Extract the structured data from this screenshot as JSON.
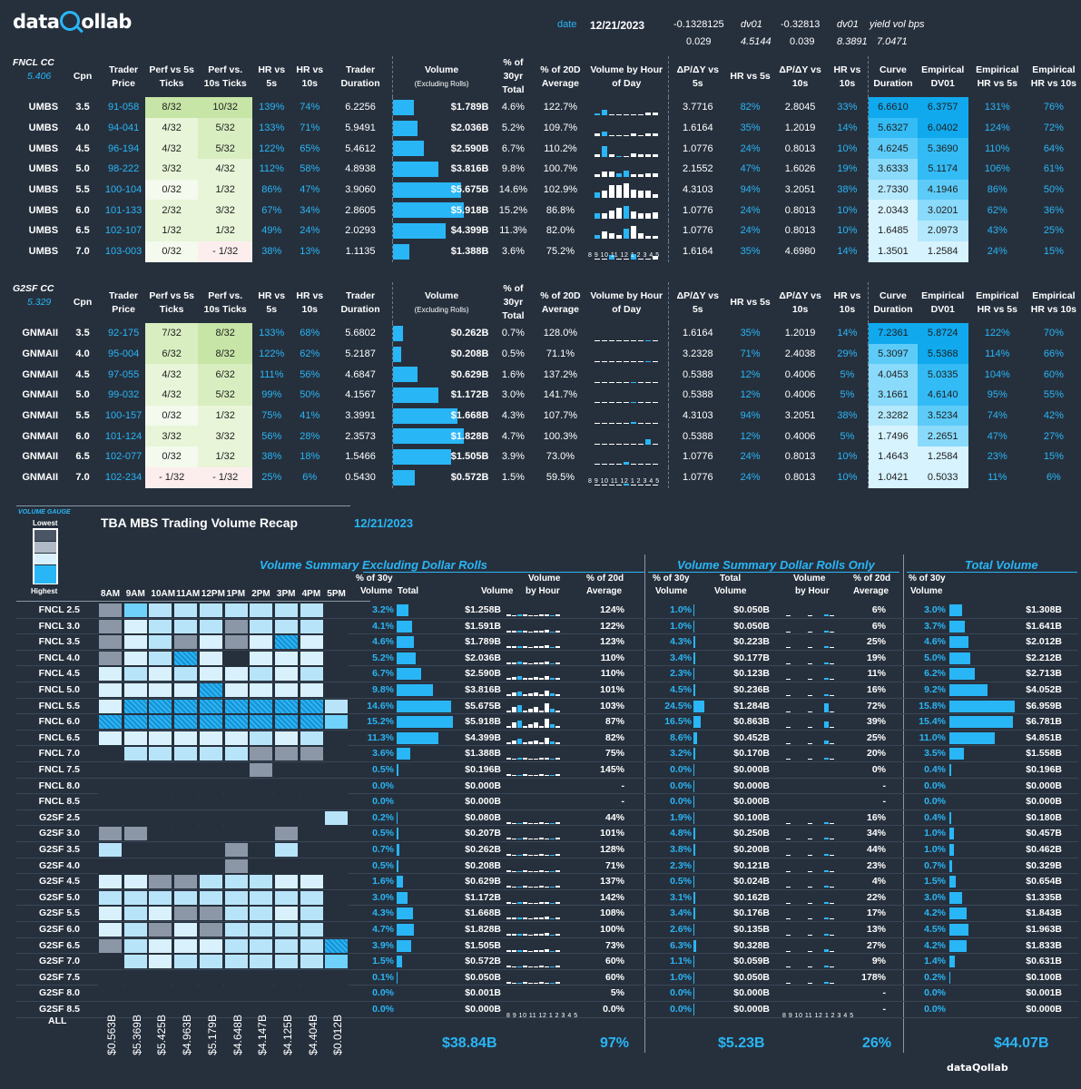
{
  "header": {
    "logo": "dataQollab",
    "date_label": "date",
    "date": "12/21/2023",
    "v1": "-0.1328125",
    "dv01a": "dv01",
    "v2": "-0.32813",
    "dv01b": "dv01",
    "yvb": "yield vol bps",
    "r2a": "0.029",
    "r2b": "4.5144",
    "r2c": "0.039",
    "r2d": "8.3891",
    "r2e": "7.0471"
  },
  "cols": [
    "Trader Price",
    "Perf vs 5s Ticks",
    "Perf vs. 10s Ticks",
    "HR vs 5s",
    "HR vs 10s",
    "Trader Duration",
    "Volume",
    "(Excluding Rolls)",
    "% of 30yr Total",
    "% of 20D Average",
    "Volume by Hour of Day",
    "ΔP/ΔY vs 5s",
    "HR vs 5s",
    "ΔP/ΔY vs 10s",
    "HR vs 10s",
    "Curve Duration",
    "Empirical DV01",
    "Empirical HR vs 5s",
    "Empirical HR vs 10s",
    "Cpn"
  ],
  "fncl": {
    "title": "FNCL CC",
    "value": "5.406",
    "rows": [
      [
        "UMBS",
        "3.5",
        "91-058",
        "8/32",
        "10/32",
        "139%",
        "74%",
        "6.2256",
        "$1.789B",
        "4.6%",
        "122.7%",
        "3.7716",
        "82%",
        "2.8045",
        "33%",
        "6.6610",
        "6.3757",
        "131%",
        "76%"
      ],
      [
        "UMBS",
        "4.0",
        "94-041",
        "4/32",
        "5/32",
        "133%",
        "71%",
        "5.9491",
        "$2.036B",
        "5.2%",
        "109.7%",
        "1.6164",
        "35%",
        "1.2019",
        "14%",
        "5.6327",
        "6.0402",
        "124%",
        "72%"
      ],
      [
        "UMBS",
        "4.5",
        "96-194",
        "4/32",
        "5/32",
        "122%",
        "65%",
        "5.4612",
        "$2.590B",
        "6.7%",
        "110.2%",
        "1.0776",
        "24%",
        "0.8013",
        "10%",
        "4.6245",
        "5.3690",
        "110%",
        "64%"
      ],
      [
        "UMBS",
        "5.0",
        "98-222",
        "3/32",
        "4/32",
        "112%",
        "58%",
        "4.8938",
        "$3.816B",
        "9.8%",
        "100.7%",
        "2.1552",
        "47%",
        "1.6026",
        "19%",
        "3.6333",
        "5.1174",
        "106%",
        "61%"
      ],
      [
        "UMBS",
        "5.5",
        "100-104",
        "0/32",
        "1/32",
        "86%",
        "47%",
        "3.9060",
        "$5.675B",
        "14.6%",
        "102.9%",
        "4.3103",
        "94%",
        "3.2051",
        "38%",
        "2.7330",
        "4.1946",
        "86%",
        "50%"
      ],
      [
        "UMBS",
        "6.0",
        "101-133",
        "2/32",
        "3/32",
        "67%",
        "34%",
        "2.8605",
        "$5.918B",
        "15.2%",
        "86.8%",
        "1.0776",
        "24%",
        "0.8013",
        "10%",
        "2.0343",
        "3.0201",
        "62%",
        "36%"
      ],
      [
        "UMBS",
        "6.5",
        "102-107",
        "1/32",
        "1/32",
        "49%",
        "24%",
        "2.0293",
        "$4.399B",
        "11.3%",
        "82.0%",
        "1.0776",
        "24%",
        "0.8013",
        "10%",
        "1.6485",
        "2.0973",
        "43%",
        "25%"
      ],
      [
        "UMBS",
        "7.0",
        "103-003",
        "0/32",
        "- 1/32",
        "38%",
        "13%",
        "1.1135",
        "$1.388B",
        "3.6%",
        "75.2%",
        "1.6164",
        "35%",
        "4.6980",
        "14%",
        "1.3501",
        "1.2584",
        "24%",
        "15%"
      ]
    ]
  },
  "g2sf": {
    "title": "G2SF CC",
    "value": "5.329",
    "rows": [
      [
        "GNMAII",
        "3.5",
        "92-175",
        "7/32",
        "8/32",
        "133%",
        "68%",
        "5.6802",
        "$0.262B",
        "0.7%",
        "128.0%",
        "1.6164",
        "35%",
        "1.2019",
        "14%",
        "7.2361",
        "5.8724",
        "122%",
        "70%"
      ],
      [
        "GNMAII",
        "4.0",
        "95-004",
        "6/32",
        "8/32",
        "122%",
        "62%",
        "5.2187",
        "$0.208B",
        "0.5%",
        "71.1%",
        "3.2328",
        "71%",
        "2.4038",
        "29%",
        "5.3097",
        "5.5368",
        "114%",
        "66%"
      ],
      [
        "GNMAII",
        "4.5",
        "97-055",
        "4/32",
        "6/32",
        "111%",
        "56%",
        "4.6847",
        "$0.629B",
        "1.6%",
        "137.2%",
        "0.5388",
        "12%",
        "0.4006",
        "5%",
        "4.0453",
        "5.0335",
        "104%",
        "60%"
      ],
      [
        "GNMAII",
        "5.0",
        "99-032",
        "4/32",
        "5/32",
        "99%",
        "50%",
        "4.1567",
        "$1.172B",
        "3.0%",
        "141.7%",
        "0.5388",
        "12%",
        "0.4006",
        "5%",
        "3.1661",
        "4.6140",
        "95%",
        "55%"
      ],
      [
        "GNMAII",
        "5.5",
        "100-157",
        "0/32",
        "1/32",
        "75%",
        "41%",
        "3.3991",
        "$1.668B",
        "4.3%",
        "107.7%",
        "4.3103",
        "94%",
        "3.2051",
        "38%",
        "2.3282",
        "3.5234",
        "74%",
        "42%"
      ],
      [
        "GNMAII",
        "6.0",
        "101-124",
        "3/32",
        "3/32",
        "56%",
        "28%",
        "2.3573",
        "$1.828B",
        "4.7%",
        "100.3%",
        "0.5388",
        "12%",
        "0.4006",
        "5%",
        "1.7496",
        "2.2651",
        "47%",
        "27%"
      ],
      [
        "GNMAII",
        "6.5",
        "102-077",
        "0/32",
        "1/32",
        "38%",
        "18%",
        "1.5466",
        "$1.505B",
        "3.9%",
        "73.0%",
        "1.0776",
        "24%",
        "0.8013",
        "10%",
        "1.4643",
        "1.2584",
        "23%",
        "15%"
      ],
      [
        "GNMAII",
        "7.0",
        "102-234",
        "- 1/32",
        "- 1/32",
        "25%",
        "6%",
        "0.5430",
        "$0.572B",
        "1.5%",
        "59.5%",
        "1.0776",
        "24%",
        "0.8013",
        "10%",
        "1.0421",
        "0.5033",
        "11%",
        "6%"
      ]
    ]
  },
  "axis": "8 9 10 11 12 1 2 3 4 5",
  "gauge": {
    "title": "VOLUME GAUGE",
    "lowest": "Lowest",
    "highest": "Highest"
  },
  "recap": {
    "title": "TBA MBS Trading Volume Recap",
    "date": "12/21/2023",
    "s1": "Volume Summary Excluding Dollar Rolls",
    "s2": "Volume Summary Dollar Rolls Only",
    "s3": "Total Volume",
    "h_pct30": "% of 30y",
    "h_vol": "Volume",
    "h_total": "Total",
    "h_volume": "Volume",
    "h_byhour": "Volume by Hour",
    "h_pct20": "% of 20d",
    "h_avg": "Average",
    "hours": [
      "8AM",
      "9AM",
      "10AM",
      "11AM",
      "12PM",
      "1PM",
      "2PM",
      "3PM",
      "4PM",
      "5PM"
    ],
    "rows": [
      [
        "FNCL 2.5",
        "3.2%",
        "$1.258B",
        "124%",
        "1.0%",
        "$0.050B",
        "6%",
        "3.0%",
        "$1.308B"
      ],
      [
        "FNCL 3.0",
        "4.1%",
        "$1.591B",
        "122%",
        "1.0%",
        "$0.050B",
        "6%",
        "3.7%",
        "$1.641B"
      ],
      [
        "FNCL 3.5",
        "4.6%",
        "$1.789B",
        "123%",
        "4.3%",
        "$0.223B",
        "25%",
        "4.6%",
        "$2.012B"
      ],
      [
        "FNCL 4.0",
        "5.2%",
        "$2.036B",
        "110%",
        "3.4%",
        "$0.177B",
        "19%",
        "5.0%",
        "$2.212B"
      ],
      [
        "FNCL 4.5",
        "6.7%",
        "$2.590B",
        "110%",
        "2.3%",
        "$0.123B",
        "11%",
        "6.2%",
        "$2.713B"
      ],
      [
        "FNCL 5.0",
        "9.8%",
        "$3.816B",
        "101%",
        "4.5%",
        "$0.236B",
        "16%",
        "9.2%",
        "$4.052B"
      ],
      [
        "FNCL 5.5",
        "14.6%",
        "$5.675B",
        "103%",
        "24.5%",
        "$1.284B",
        "72%",
        "15.8%",
        "$6.959B"
      ],
      [
        "FNCL 6.0",
        "15.2%",
        "$5.918B",
        "87%",
        "16.5%",
        "$0.863B",
        "39%",
        "15.4%",
        "$6.781B"
      ],
      [
        "FNCL 6.5",
        "11.3%",
        "$4.399B",
        "82%",
        "8.6%",
        "$0.452B",
        "25%",
        "11.0%",
        "$4.851B"
      ],
      [
        "FNCL 7.0",
        "3.6%",
        "$1.388B",
        "75%",
        "3.2%",
        "$0.170B",
        "20%",
        "3.5%",
        "$1.558B"
      ],
      [
        "FNCL 7.5",
        "0.5%",
        "$0.196B",
        "145%",
        "0.0%",
        "$0.000B",
        "0%",
        "0.4%",
        "$0.196B"
      ],
      [
        "FNCL 8.0",
        "0.0%",
        "$0.000B",
        "-",
        "0.0%",
        "$0.000B",
        "-",
        "0.0%",
        "$0.000B"
      ],
      [
        "FNCL 8.5",
        "0.0%",
        "$0.000B",
        "-",
        "0.0%",
        "$0.000B",
        "-",
        "0.0%",
        "$0.000B"
      ],
      [
        "G2SF 2.5",
        "0.2%",
        "$0.080B",
        "44%",
        "1.9%",
        "$0.100B",
        "16%",
        "0.4%",
        "$0.180B"
      ],
      [
        "G2SF 3.0",
        "0.5%",
        "$0.207B",
        "101%",
        "4.8%",
        "$0.250B",
        "34%",
        "1.0%",
        "$0.457B"
      ],
      [
        "G2SF 3.5",
        "0.7%",
        "$0.262B",
        "128%",
        "3.8%",
        "$0.200B",
        "44%",
        "1.0%",
        "$0.462B"
      ],
      [
        "G2SF 4.0",
        "0.5%",
        "$0.208B",
        "71%",
        "2.3%",
        "$0.121B",
        "23%",
        "0.7%",
        "$0.329B"
      ],
      [
        "G2SF 4.5",
        "1.6%",
        "$0.629B",
        "137%",
        "0.5%",
        "$0.024B",
        "4%",
        "1.5%",
        "$0.654B"
      ],
      [
        "G2SF 5.0",
        "3.0%",
        "$1.172B",
        "142%",
        "3.1%",
        "$0.162B",
        "22%",
        "3.0%",
        "$1.335B"
      ],
      [
        "G2SF 5.5",
        "4.3%",
        "$1.668B",
        "108%",
        "3.4%",
        "$0.176B",
        "17%",
        "4.2%",
        "$1.843B"
      ],
      [
        "G2SF 6.0",
        "4.7%",
        "$1.828B",
        "100%",
        "2.6%",
        "$0.135B",
        "13%",
        "4.5%",
        "$1.963B"
      ],
      [
        "G2SF 6.5",
        "3.9%",
        "$1.505B",
        "73%",
        "6.3%",
        "$0.328B",
        "27%",
        "4.2%",
        "$1.833B"
      ],
      [
        "G2SF 7.0",
        "1.5%",
        "$0.572B",
        "60%",
        "1.1%",
        "$0.059B",
        "9%",
        "1.4%",
        "$0.631B"
      ],
      [
        "G2SF 7.5",
        "0.1%",
        "$0.050B",
        "60%",
        "1.0%",
        "$0.050B",
        "178%",
        "0.2%",
        "$0.100B"
      ],
      [
        "G2SF 8.0",
        "0.0%",
        "$0.001B",
        "5%",
        "0.0%",
        "$0.000B",
        "-",
        "0.0%",
        "$0.001B"
      ],
      [
        "G2SF 8.5",
        "0.0%",
        "$0.000B",
        "0.0%",
        "0.0%",
        "$0.000B",
        "-",
        "0.0%",
        "$0.000B"
      ]
    ],
    "all": "ALL",
    "hour_totals": [
      "$0.563B",
      "$5.369B",
      "$5.425B",
      "$4.963B",
      "$5.179B",
      "$4.648B",
      "$4.147B",
      "$4.125B",
      "$4.404B",
      "$0.012B"
    ],
    "t1": "$38.84B",
    "t1p": "97%",
    "t2": "$5.23B",
    "t2p": "26%",
    "t3": "$44.07B",
    "footer_logo": "dataQollab"
  }
}
